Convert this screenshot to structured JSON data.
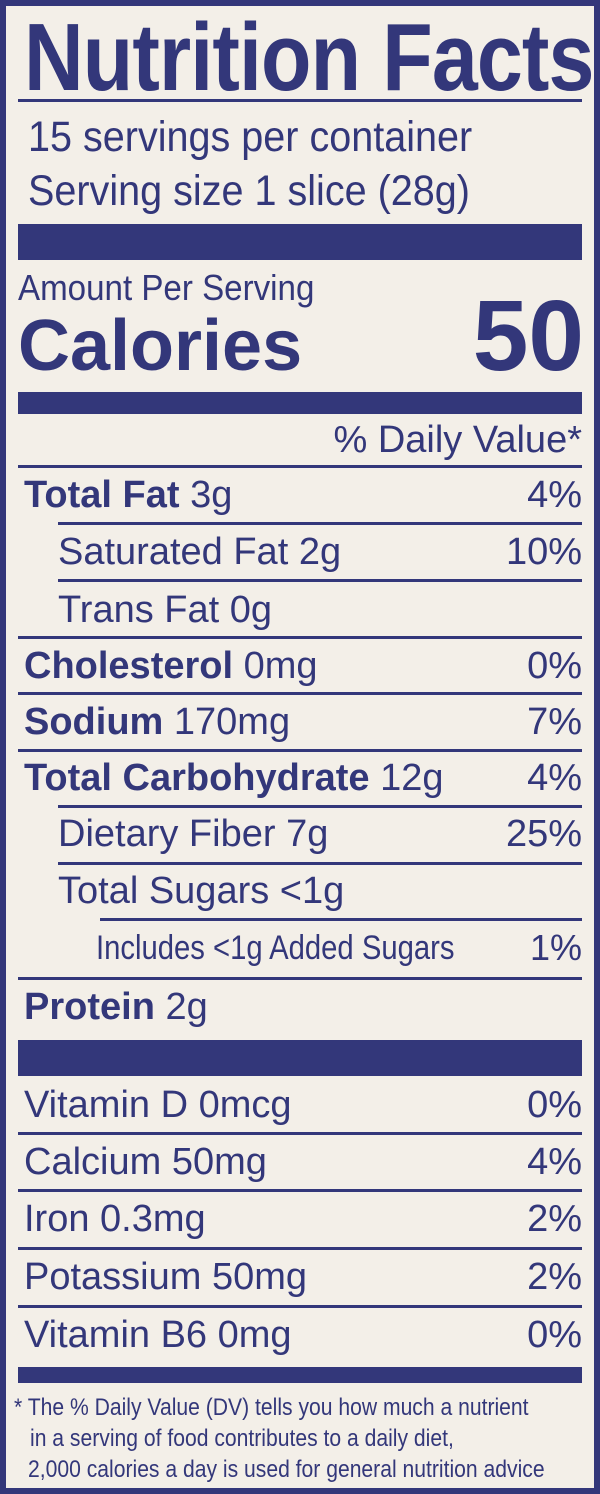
{
  "colors": {
    "ink": "#33377a",
    "background": "#f3efe8"
  },
  "title": "Nutrition Facts",
  "servings_per_container": "15 servings per container",
  "serving_size": "Serving size 1 slice (28g)",
  "amount_per_serving": "Amount Per Serving",
  "calories_label": "Calories",
  "calories_value": "50",
  "daily_value_header": "% Daily Value*",
  "nutrients": [
    {
      "name": "Total Fat",
      "amount": "3g",
      "dv": "4%"
    },
    {
      "name": "Saturated Fat",
      "amount": "2g",
      "dv": "10%"
    },
    {
      "name": "Trans Fat",
      "amount": "0g",
      "dv": ""
    },
    {
      "name": "Cholesterol",
      "amount": "0mg",
      "dv": "0%"
    },
    {
      "name": "Sodium",
      "amount": "170mg",
      "dv": "7%"
    },
    {
      "name": "Total Carbohydrate",
      "amount": "12g",
      "dv": "4%"
    },
    {
      "name": "Dietary Fiber",
      "amount": "7g",
      "dv": "25%"
    },
    {
      "name": "Total Sugars",
      "amount": "<1g",
      "dv": ""
    },
    {
      "name": "Includes <1g Added Sugars",
      "amount": "",
      "dv": "1%"
    },
    {
      "name": "Protein",
      "amount": "2g",
      "dv": ""
    }
  ],
  "vitamins": [
    {
      "name": "Vitamin D",
      "amount": "0mcg",
      "dv": "0%"
    },
    {
      "name": "Calcium",
      "amount": "50mg",
      "dv": "4%"
    },
    {
      "name": "Iron",
      "amount": "0.3mg",
      "dv": "2%"
    },
    {
      "name": "Potassium",
      "amount": "50mg",
      "dv": "2%"
    },
    {
      "name": "Vitamin B6",
      "amount": "0mg",
      "dv": "0%"
    }
  ],
  "footnote": [
    "* The % Daily Value (DV) tells you how much a nutrient",
    "in a serving of food contributes to a daily diet,",
    "2,000 calories a day is used for general nutrition advice"
  ]
}
